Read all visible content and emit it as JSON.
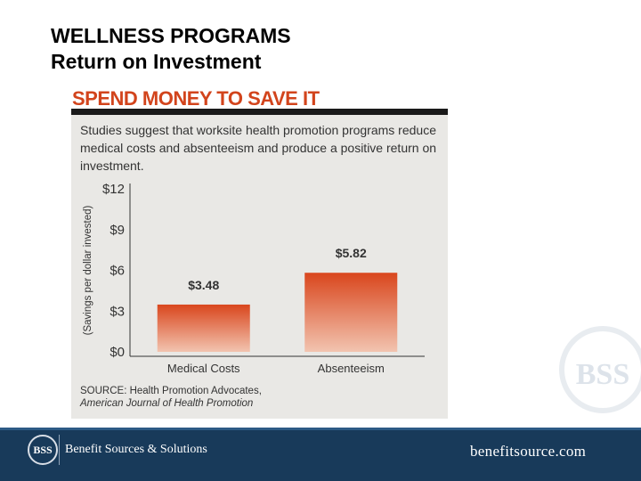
{
  "slide": {
    "title_line1": "WELLNESS PROGRAMS",
    "title_line2": "Return on Investment"
  },
  "card": {
    "headline": "SPEND MONEY TO SAVE IT",
    "intro": "Studies suggest that worksite health promotion programs reduce medical costs and absenteeism and produce a positive return on investment.",
    "source_line1": "SOURCE: Health Promotion Advocates,",
    "source_line2": "American Journal of Health Promotion"
  },
  "chart_data": {
    "type": "bar",
    "categories": [
      "Medical Costs",
      "Absenteeism"
    ],
    "values": [
      3.48,
      5.82
    ],
    "value_labels": [
      "$3.48",
      "$5.82"
    ],
    "ylabel": "(Savings per dollar invested)",
    "ylim": [
      0,
      12
    ],
    "yticks": [
      0,
      3,
      6,
      9,
      12
    ],
    "ytick_labels": [
      "$0",
      "$3",
      "$6",
      "$9",
      "$12"
    ],
    "grid": false,
    "legend": "none",
    "bar_color_top": "#d9461d",
    "bar_color_bottom": "#f2c4b0"
  },
  "footer": {
    "logo_text": "BSS",
    "company": "Benefit Sources & Solutions",
    "url": "benefitsource.com",
    "background": "#183a5a"
  },
  "watermark": {
    "text": "BSS"
  }
}
